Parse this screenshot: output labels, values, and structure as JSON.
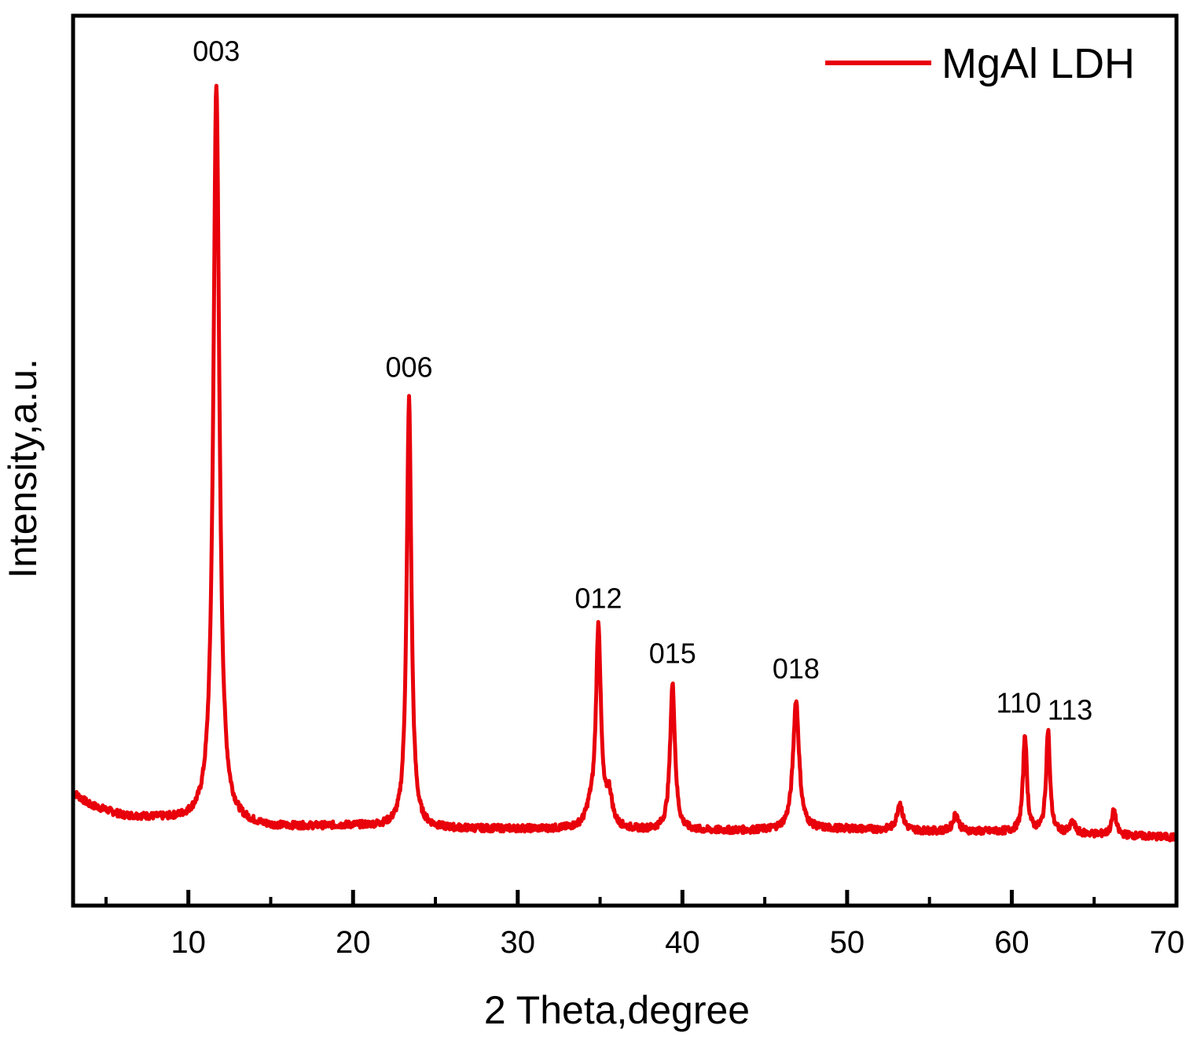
{
  "chart_data": {
    "type": "line",
    "title": "",
    "xlabel": "2 Theta,degree",
    "ylabel": "Intensity,a.u.",
    "xlim": [
      3,
      70
    ],
    "ylim": [
      -10,
      105
    ],
    "x_ticks_major": [
      10,
      20,
      30,
      40,
      50,
      60,
      70
    ],
    "x_ticks_minor": [
      5,
      15,
      25,
      35,
      45,
      55,
      65
    ],
    "y_ticks": [],
    "grid": false,
    "legend": {
      "position": "top-right",
      "entries": [
        "MgAl LDH"
      ]
    },
    "colors": {
      "series": "#e8000b",
      "axis": "#000000"
    },
    "baseline": {
      "x": [
        3,
        4,
        6,
        10,
        15,
        20,
        25,
        30,
        35,
        40,
        45,
        50,
        55,
        60,
        65,
        70
      ],
      "y": [
        4.6,
        3.0,
        1.6,
        0.9,
        0.1,
        0.3,
        -0.1,
        -0.1,
        -0.2,
        -0.4,
        -0.3,
        -0.1,
        -0.4,
        -0.5,
        -0.8,
        -1.2
      ]
    },
    "peaks": [
      {
        "label": "003",
        "x": 11.7,
        "y": 96.3
      },
      {
        "label": "006",
        "x": 23.4,
        "y": 55.5
      },
      {
        "label": "012",
        "x": 34.9,
        "y": 25.6
      },
      {
        "label": "015",
        "x": 39.4,
        "y": 18.5
      },
      {
        "label": "018",
        "x": 46.9,
        "y": 16.5
      },
      {
        "label": "",
        "x": 53.2,
        "y": 3.3
      },
      {
        "label": "",
        "x": 56.6,
        "y": 1.8
      },
      {
        "label": "110",
        "x": 60.8,
        "y": 12.1
      },
      {
        "label": "113",
        "x": 62.2,
        "y": 12.6
      },
      {
        "label": "",
        "x": 63.7,
        "y": 0.7
      },
      {
        "label": "",
        "x": 66.2,
        "y": 2.3
      }
    ],
    "series": [
      {
        "name": "MgAl LDH",
        "type": "line"
      }
    ]
  }
}
